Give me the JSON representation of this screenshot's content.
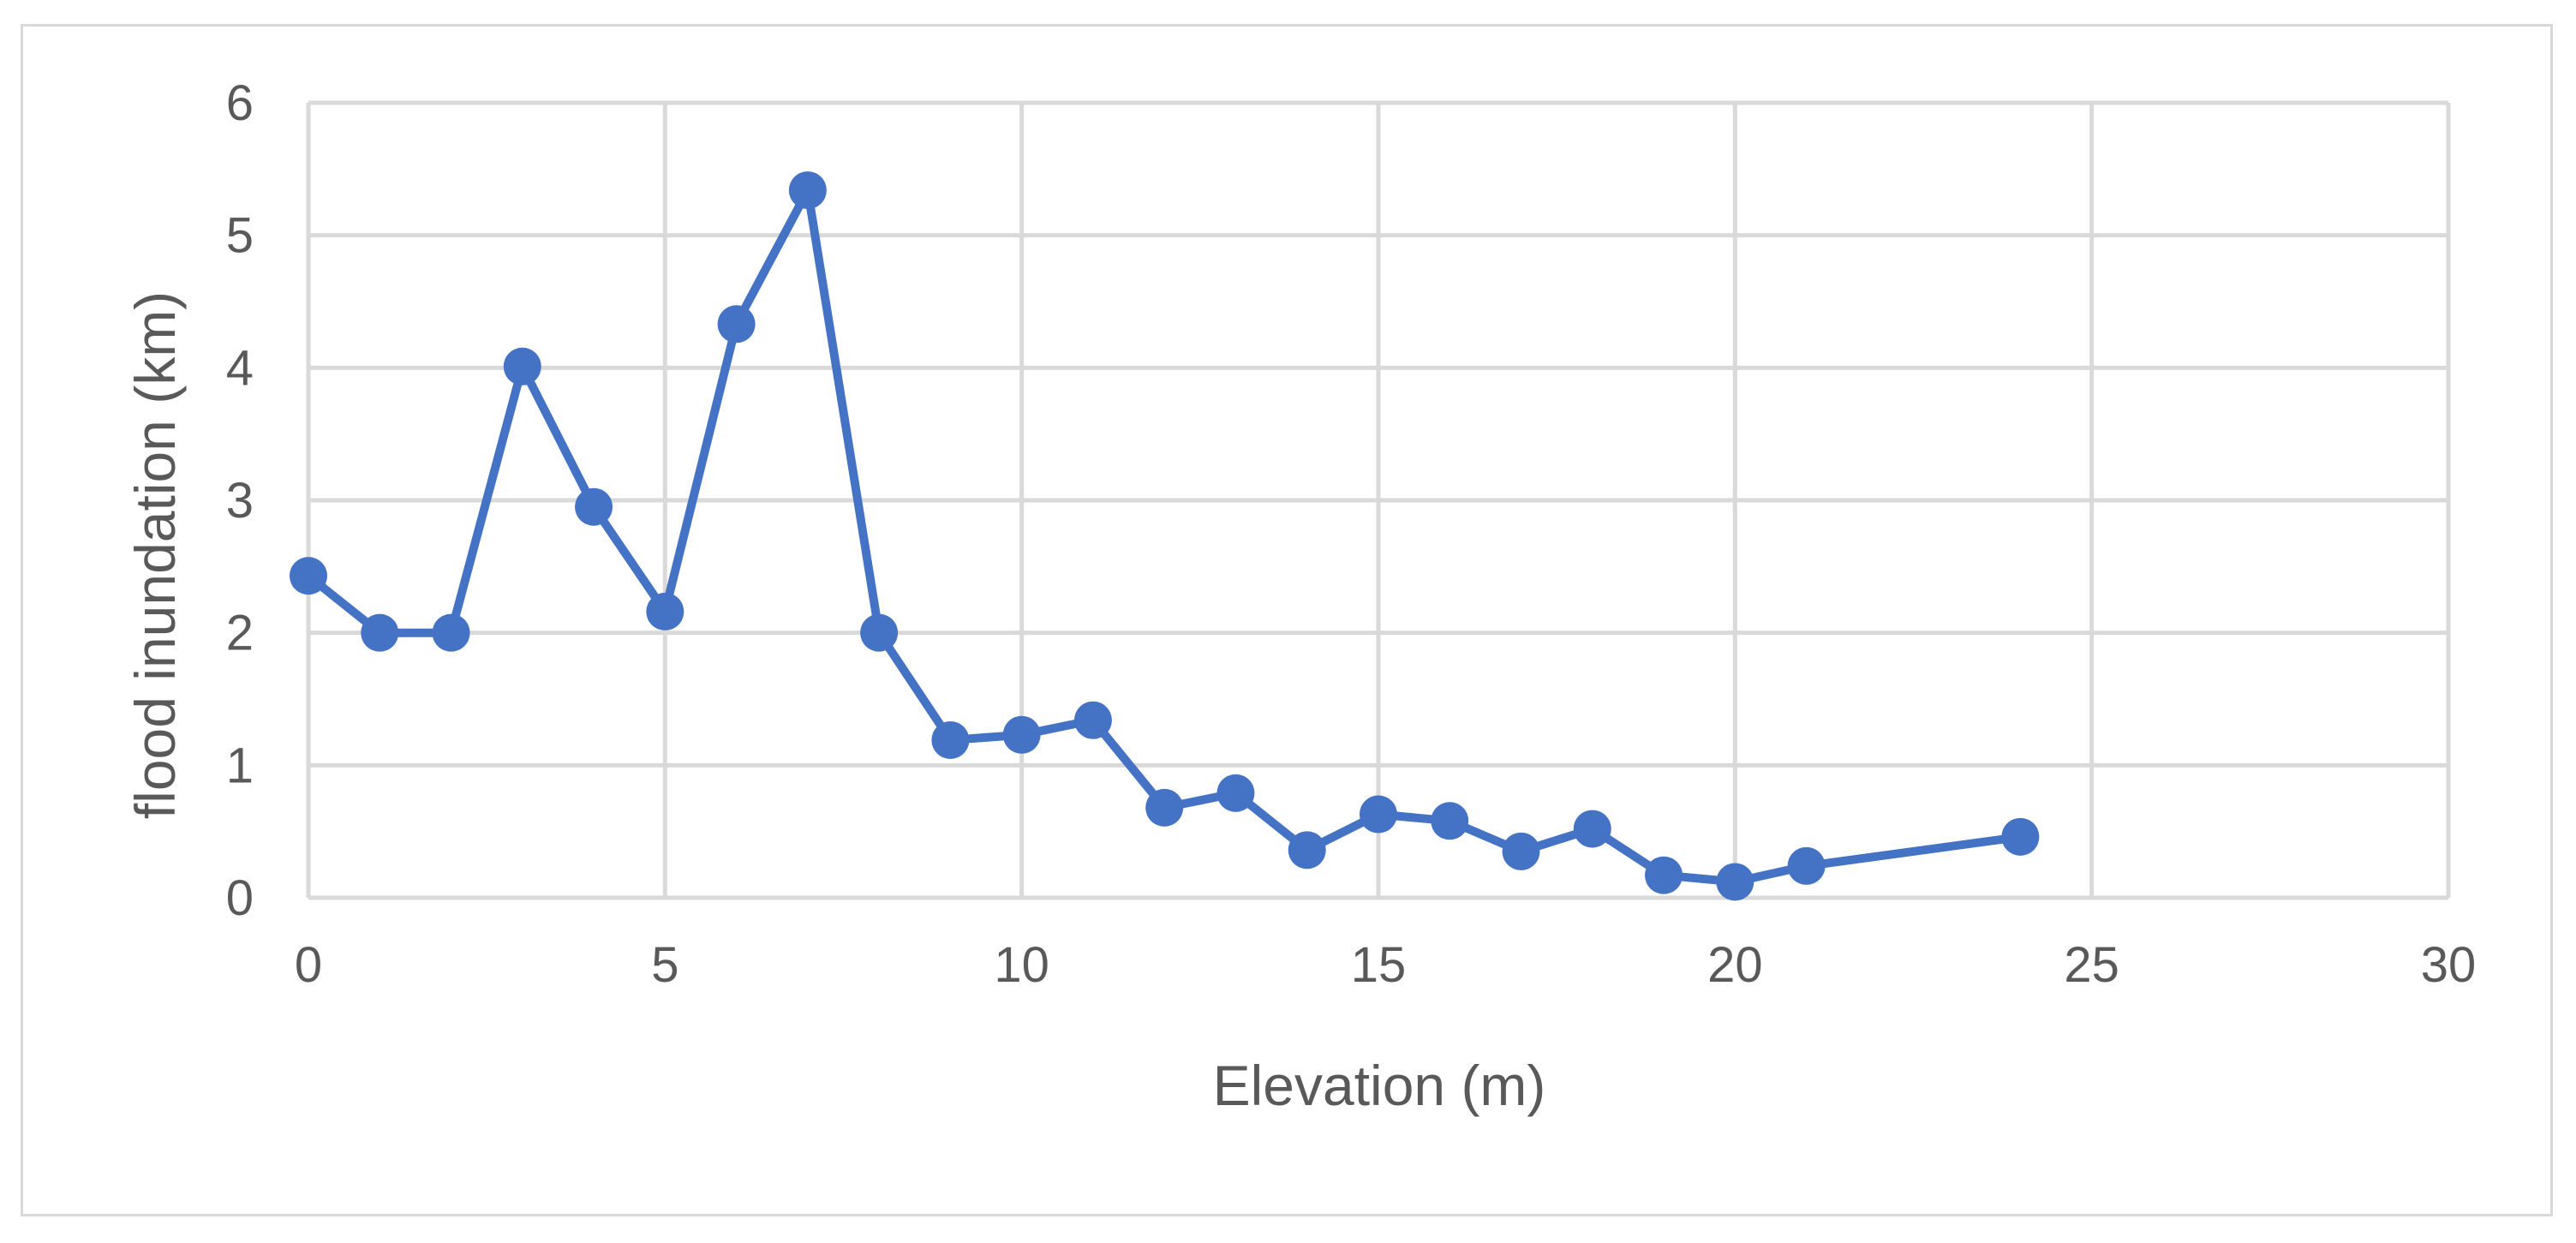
{
  "chart_data": {
    "type": "scatter",
    "xlabel": "Elevation (m)",
    "ylabel": "flood inundation (km)",
    "xlim": [
      0,
      30
    ],
    "ylim": [
      0,
      6
    ],
    "xticks": [
      0,
      5,
      10,
      15,
      20,
      25,
      30
    ],
    "yticks": [
      0,
      1,
      2,
      3,
      4,
      5,
      6
    ],
    "grid": true,
    "legend": "none",
    "colors": {
      "series": "#4472C4",
      "grid": "#d9d9d9",
      "text": "#595959"
    },
    "series": [
      {
        "x": [
          0,
          1,
          2,
          3,
          4,
          5,
          6,
          7,
          8,
          9,
          10,
          11,
          12,
          13,
          14,
          15,
          16,
          17,
          18,
          19,
          20,
          21,
          24
        ],
        "y": [
          2.43,
          2.0,
          2.0,
          4.01,
          2.95,
          2.16,
          4.33,
          5.34,
          2.0,
          1.19,
          1.23,
          1.34,
          0.68,
          0.79,
          0.36,
          0.63,
          0.58,
          0.35,
          0.52,
          0.17,
          0.12,
          0.24,
          0.46
        ]
      }
    ]
  }
}
